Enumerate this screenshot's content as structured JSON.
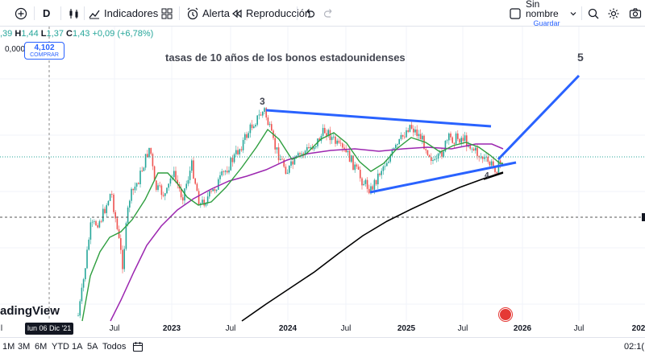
{
  "toolbar": {
    "add_icon": "plus-circle-icon",
    "interval": "D",
    "compare_icon": "candles-icon",
    "indicators_label": "Indicadores",
    "layouts_icon": "grid-icon",
    "alert_label": "Alerta",
    "replay_label": "Reproducción",
    "undo_icon": "undo-icon",
    "redo_icon": "redo-icon",
    "layout_name": "Sin nombre",
    "layout_sub": "Guardar",
    "search_icon": "search-icon",
    "settings_icon": "gear-icon",
    "camera_icon": "camera-icon"
  },
  "legend": {
    "open": ",39",
    "high_label": "H",
    "high": "1,44",
    "low_label": "L",
    "low": "1,37",
    "close_label": "C",
    "close": "1,43",
    "change": "+0,09 (+6,78%)",
    "volume": "0,000",
    "buy_price": "4,102",
    "buy_label": "COMPRAR"
  },
  "annotations": {
    "title": "tasas de 10 años de los bonos estadounidenses",
    "wave3": "3",
    "wave4": "4",
    "wave5": "5"
  },
  "brand": "adingView",
  "time_axis": {
    "crosshair_date": "lun 06 Dic '21",
    "labels": [
      {
        "text": "Jul",
        "bold": false
      },
      {
        "text": "2023",
        "bold": true
      },
      {
        "text": "Jul",
        "bold": false
      },
      {
        "text": "2024",
        "bold": true
      },
      {
        "text": "Jul",
        "bold": false
      },
      {
        "text": "2025",
        "bold": true
      },
      {
        "text": "Jul",
        "bold": false
      },
      {
        "text": "2026",
        "bold": true
      },
      {
        "text": "Jul",
        "bold": false
      },
      {
        "text": "202",
        "bold": true
      }
    ],
    "edge_left": "l"
  },
  "ranges": [
    "1M",
    "3M",
    "6M",
    "YTD",
    "1A",
    "5A",
    "Todos"
  ],
  "calendar_icon": "calendar-range-icon",
  "clock": "02:1(",
  "colors": {
    "up": "#26a69a",
    "down": "#ef5350",
    "ma_green": "#2e9e3f",
    "ma_purple": "#9c27b0",
    "ma_black": "#000000",
    "trendline": "#2962ff"
  },
  "chart_data": {
    "type": "candlestick",
    "x_range": [
      "2022-04",
      "2027-01"
    ],
    "series": [
      {
        "name": "",
        "kind": "candles"
      },
      {
        "name": "",
        "kind": "line",
        "color": "#2e9e3f"
      },
      {
        "name": "",
        "kind": "line",
        "color": "#9c27b0"
      },
      {
        "name": "",
        "kind": "line",
        "color": "#000000"
      }
    ],
    "grid": true
  }
}
